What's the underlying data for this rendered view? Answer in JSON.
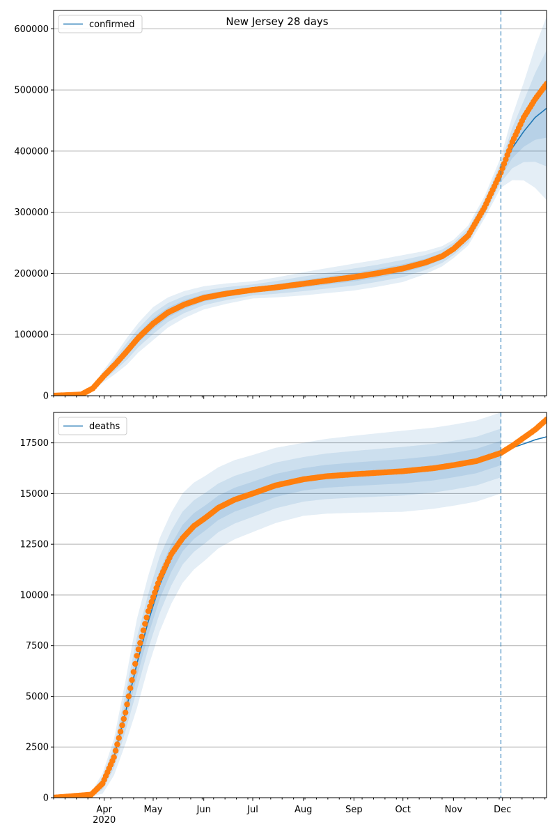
{
  "figure": {
    "title": "New Jersey 28 days"
  },
  "colors": {
    "model": "#1f77b4",
    "observed": "#ff7f0e",
    "band": "#1f77b4",
    "grid": "#b0b0b0",
    "forecast_line": "#1f77b4"
  },
  "chart_data": [
    {
      "type": "line",
      "legend": [
        "confirmed"
      ],
      "legend_loc": "top-left",
      "grid": "y",
      "xlim": [
        "2020-03-01",
        "2020-12-28"
      ],
      "ylim": [
        0,
        630000
      ],
      "yticks": [
        0,
        100000,
        200000,
        300000,
        400000,
        500000,
        600000
      ],
      "ytick_labels": [
        "0",
        "100000",
        "200000",
        "300000",
        "400000",
        "500000",
        "600000"
      ],
      "forecast_start": "2020-11-30",
      "model_series": {
        "name": "confirmed",
        "x": [
          "2020-03-01",
          "2020-03-18",
          "2020-03-25",
          "2020-04-01",
          "2020-04-08",
          "2020-04-15",
          "2020-04-22",
          "2020-05-01",
          "2020-05-10",
          "2020-05-20",
          "2020-06-01",
          "2020-06-15",
          "2020-07-01",
          "2020-07-15",
          "2020-08-01",
          "2020-08-15",
          "2020-09-01",
          "2020-09-15",
          "2020-10-01",
          "2020-10-15",
          "2020-10-25",
          "2020-11-01",
          "2020-11-10",
          "2020-11-20",
          "2020-11-30",
          "2020-12-07",
          "2020-12-14",
          "2020-12-21",
          "2020-12-28"
        ],
        "y": [
          0,
          2000,
          12000,
          33000,
          52000,
          73000,
          95000,
          118000,
          136000,
          149000,
          160000,
          167000,
          173000,
          177000,
          183000,
          188000,
          194000,
          200000,
          208000,
          218000,
          228000,
          240000,
          262000,
          308000,
          365000,
          405000,
          432000,
          455000,
          470000
        ]
      },
      "observed_series": {
        "name": "confirmed (observed)",
        "x": [
          "2020-03-01",
          "2020-03-18",
          "2020-03-25",
          "2020-04-01",
          "2020-04-08",
          "2020-04-15",
          "2020-04-22",
          "2020-05-01",
          "2020-05-10",
          "2020-05-20",
          "2020-06-01",
          "2020-06-15",
          "2020-07-01",
          "2020-07-15",
          "2020-08-01",
          "2020-08-15",
          "2020-09-01",
          "2020-09-15",
          "2020-10-01",
          "2020-10-15",
          "2020-10-25",
          "2020-11-01",
          "2020-11-10",
          "2020-11-20",
          "2020-11-30",
          "2020-12-07",
          "2020-12-14",
          "2020-12-21",
          "2020-12-28"
        ],
        "y": [
          0,
          2000,
          12000,
          33000,
          52000,
          73000,
          95000,
          118000,
          136000,
          149000,
          160000,
          167000,
          173000,
          177000,
          183000,
          188000,
          194000,
          200000,
          208000,
          218000,
          228000,
          240000,
          262000,
          308000,
          365000,
          415000,
          455000,
          485000,
          510000
        ]
      },
      "band_half_widths": {
        "x": [
          "2020-03-01",
          "2020-03-25",
          "2020-04-15",
          "2020-05-01",
          "2020-06-01",
          "2020-07-01",
          "2020-08-01",
          "2020-09-01",
          "2020-10-01",
          "2020-11-01",
          "2020-11-20",
          "2020-11-30",
          "2020-12-14",
          "2020-12-28"
        ],
        "outer": [
          0,
          4000,
          22000,
          27000,
          19000,
          14000,
          19000,
          22000,
          22000,
          15000,
          18000,
          25000,
          80000,
          150000
        ],
        "middle": [
          0,
          2500,
          14000,
          17000,
          12000,
          9000,
          12000,
          14000,
          14000,
          10000,
          12000,
          16000,
          50000,
          95000
        ],
        "inner": [
          0,
          1200,
          7000,
          9000,
          6000,
          4500,
          6000,
          7000,
          7000,
          5000,
          6000,
          8000,
          25000,
          48000
        ]
      }
    },
    {
      "type": "line",
      "legend": [
        "deaths"
      ],
      "legend_loc": "top-left",
      "grid": "y",
      "xlim": [
        "2020-03-01",
        "2020-12-28"
      ],
      "ylim": [
        0,
        19000
      ],
      "yticks": [
        0,
        2500,
        5000,
        7500,
        10000,
        12500,
        15000,
        17500
      ],
      "ytick_labels": [
        "0",
        "2500",
        "5000",
        "7500",
        "10000",
        "12500",
        "15000",
        "17500"
      ],
      "xticks": [
        "2020-04-01",
        "2020-05-01",
        "2020-06-01",
        "2020-07-01",
        "2020-08-01",
        "2020-09-01",
        "2020-10-01",
        "2020-11-01",
        "2020-12-01"
      ],
      "xtick_labels": [
        "Apr\n2020",
        "May",
        "Jun",
        "Jul",
        "Aug",
        "Sep",
        "Oct",
        "Nov",
        "Dec"
      ],
      "forecast_start": "2020-11-30",
      "model_series": {
        "name": "deaths",
        "x": [
          "2020-03-01",
          "2020-03-24",
          "2020-03-31",
          "2020-04-07",
          "2020-04-14",
          "2020-04-21",
          "2020-04-28",
          "2020-05-05",
          "2020-05-12",
          "2020-05-19",
          "2020-05-26",
          "2020-06-02",
          "2020-06-10",
          "2020-06-20",
          "2020-07-01",
          "2020-07-15",
          "2020-08-01",
          "2020-08-15",
          "2020-09-01",
          "2020-10-01",
          "2020-10-20",
          "2020-11-01",
          "2020-11-15",
          "2020-11-30",
          "2020-12-07",
          "2020-12-14",
          "2020-12-21",
          "2020-12-28"
        ],
        "y": [
          0,
          150,
          700,
          2000,
          4200,
          6600,
          8700,
          10500,
          11800,
          12800,
          13400,
          13800,
          14300,
          14700,
          15000,
          15400,
          15700,
          15850,
          15950,
          16100,
          16250,
          16400,
          16600,
          17000,
          17250,
          17450,
          17650,
          17800
        ]
      },
      "observed_series": {
        "name": "deaths (observed)",
        "x": [
          "2020-03-01",
          "2020-03-24",
          "2020-03-31",
          "2020-04-07",
          "2020-04-14",
          "2020-04-21",
          "2020-04-28",
          "2020-05-05",
          "2020-05-12",
          "2020-05-19",
          "2020-05-26",
          "2020-06-02",
          "2020-06-10",
          "2020-06-20",
          "2020-07-01",
          "2020-07-15",
          "2020-08-01",
          "2020-08-15",
          "2020-09-01",
          "2020-10-01",
          "2020-10-20",
          "2020-11-01",
          "2020-11-15",
          "2020-11-30",
          "2020-12-07",
          "2020-12-14",
          "2020-12-21",
          "2020-12-28"
        ],
        "y": [
          0,
          150,
          700,
          2000,
          4200,
          7000,
          9200,
          10800,
          12000,
          12800,
          13400,
          13800,
          14300,
          14700,
          15000,
          15400,
          15700,
          15850,
          15950,
          16100,
          16250,
          16400,
          16600,
          17000,
          17350,
          17750,
          18150,
          18650
        ]
      },
      "band_half_widths": {
        "x": [
          "2020-03-01",
          "2020-03-24",
          "2020-04-07",
          "2020-04-21",
          "2020-05-05",
          "2020-05-20",
          "2020-06-10",
          "2020-07-01",
          "2020-08-01",
          "2020-09-01",
          "2020-10-01",
          "2020-11-01",
          "2020-11-30"
        ],
        "outer": [
          0,
          100,
          900,
          2200,
          2300,
          2200,
          2000,
          1900,
          1800,
          1900,
          2000,
          2000,
          2000
        ],
        "middle": [
          0,
          60,
          550,
          1300,
          1400,
          1300,
          1200,
          1150,
          1100,
          1150,
          1200,
          1200,
          1200
        ],
        "inner": [
          0,
          30,
          280,
          650,
          700,
          650,
          600,
          580,
          550,
          580,
          600,
          600,
          600
        ]
      }
    }
  ]
}
